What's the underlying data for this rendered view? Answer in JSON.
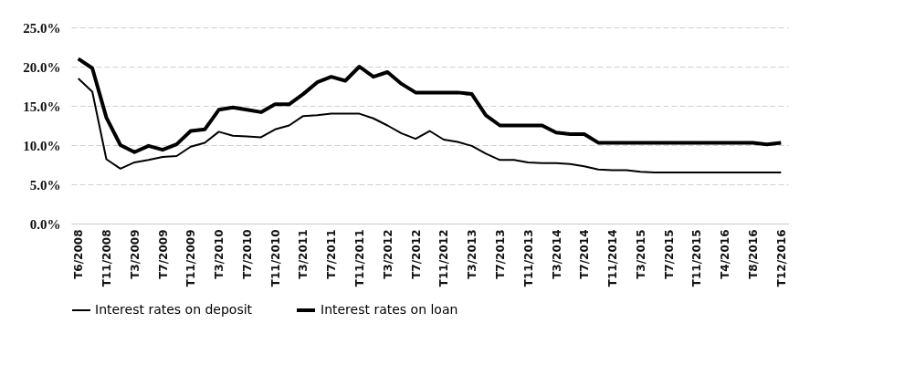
{
  "chart_data": {
    "type": "line",
    "categories": [
      "T6/2008",
      null,
      "T11/2008",
      null,
      "T3/2009",
      null,
      "T7/2009",
      null,
      "T11/2009",
      null,
      "T3/2010",
      null,
      "T7/2010",
      null,
      "T11/2010",
      null,
      "T3/2011",
      null,
      "T7/2011",
      null,
      "T11/2011",
      null,
      "T3/2012",
      null,
      "T7/2012",
      null,
      "T11/2012",
      null,
      "T3/2013",
      null,
      "T7/2013",
      null,
      "T11/2013",
      null,
      "T3/2014",
      null,
      "T7/2014",
      null,
      "T11/2014",
      null,
      "T3/2015",
      null,
      "T7/2015",
      null,
      "T11/2015",
      null,
      "T4/2016",
      null,
      "T8/2016",
      null,
      "T12/2016"
    ],
    "series": [
      {
        "name": "Interest rates on deposit",
        "color": "#000000",
        "values": [
          18.5,
          16.8,
          8.2,
          7.0,
          7.8,
          8.1,
          8.5,
          8.6,
          9.8,
          10.3,
          11.7,
          11.2,
          11.1,
          11.0,
          12.0,
          12.5,
          13.7,
          13.8,
          14.0,
          14.0,
          14.0,
          13.4,
          12.5,
          11.5,
          10.8,
          11.8,
          10.7,
          10.4,
          9.9,
          8.9,
          8.1,
          8.1,
          7.8,
          7.7,
          7.7,
          7.6,
          7.3,
          6.9,
          6.8,
          6.8,
          6.6,
          6.5,
          6.5,
          6.5,
          6.5,
          6.5,
          6.5,
          6.5,
          6.5,
          6.5,
          6.5
        ]
      },
      {
        "name": "Interest rates on loan",
        "color": "#000000",
        "values": [
          21.0,
          19.8,
          13.5,
          10.0,
          9.1,
          9.9,
          9.4,
          10.1,
          11.8,
          12.0,
          14.5,
          14.8,
          14.5,
          14.2,
          15.2,
          15.2,
          16.5,
          18.0,
          18.7,
          18.2,
          20.0,
          18.7,
          19.3,
          17.8,
          16.7,
          16.7,
          16.7,
          16.7,
          16.5,
          13.8,
          12.5,
          12.5,
          12.5,
          12.5,
          11.6,
          11.4,
          11.4,
          10.3,
          10.3,
          10.3,
          10.3,
          10.3,
          10.3,
          10.3,
          10.3,
          10.3,
          10.3,
          10.3,
          10.3,
          10.1,
          10.3
        ]
      }
    ],
    "ylim": [
      0,
      25
    ],
    "yticks": [
      {
        "value": 0,
        "label": "0.0%"
      },
      {
        "value": 5,
        "label": "5.0%"
      },
      {
        "value": 10,
        "label": "10.0%"
      },
      {
        "value": 15,
        "label": "15.0%"
      },
      {
        "value": 20,
        "label": "20.0%"
      },
      {
        "value": 25,
        "label": "25.0%"
      }
    ],
    "grid": "y",
    "legend": "bottom"
  }
}
